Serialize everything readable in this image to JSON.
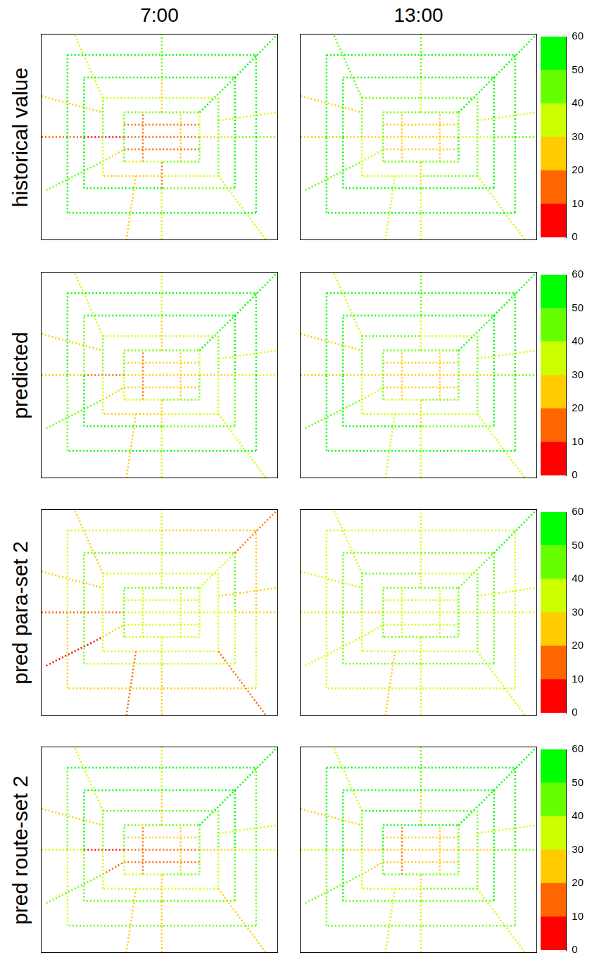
{
  "chart_data": {
    "type": "scatter",
    "columns": [
      "7:00",
      "13:00"
    ],
    "rows": [
      "historical value",
      "predicted",
      "pred para-set 2",
      "pred route-set 2"
    ],
    "line_style": "dotted",
    "tick_labels": false,
    "xlim": [
      0,
      100
    ],
    "ylim": [
      0,
      100
    ],
    "road_segments": [
      [
        35,
        62,
        51,
        62
      ],
      [
        51,
        62,
        67,
        62
      ],
      [
        67,
        62,
        67,
        50
      ],
      [
        67,
        50,
        67,
        38
      ],
      [
        67,
        38,
        51,
        38
      ],
      [
        51,
        38,
        35,
        38
      ],
      [
        35,
        38,
        35,
        50
      ],
      [
        35,
        50,
        35,
        62
      ],
      [
        26,
        69,
        51,
        69
      ],
      [
        51,
        69,
        75,
        69
      ],
      [
        75,
        69,
        75,
        50
      ],
      [
        75,
        50,
        75,
        31
      ],
      [
        75,
        31,
        51,
        31
      ],
      [
        51,
        31,
        26,
        31
      ],
      [
        26,
        31,
        26,
        50
      ],
      [
        26,
        50,
        26,
        69
      ],
      [
        18,
        79,
        51,
        79
      ],
      [
        51,
        79,
        82,
        79
      ],
      [
        82,
        79,
        82,
        50
      ],
      [
        82,
        50,
        82,
        25
      ],
      [
        82,
        25,
        51,
        25
      ],
      [
        51,
        25,
        18,
        25
      ],
      [
        18,
        25,
        18,
        50
      ],
      [
        18,
        50,
        18,
        79
      ],
      [
        11,
        90,
        51,
        90
      ],
      [
        51,
        90,
        91,
        90
      ],
      [
        91,
        90,
        91,
        50
      ],
      [
        91,
        50,
        91,
        13
      ],
      [
        91,
        13,
        51,
        13
      ],
      [
        51,
        13,
        11,
        13
      ],
      [
        11,
        13,
        11,
        50
      ],
      [
        11,
        50,
        11,
        90
      ],
      [
        0,
        50,
        18,
        50
      ],
      [
        18,
        50,
        35,
        50
      ],
      [
        35,
        50,
        67,
        50
      ],
      [
        67,
        50,
        82,
        50
      ],
      [
        82,
        50,
        100,
        50
      ],
      [
        51,
        0,
        51,
        25
      ],
      [
        51,
        25,
        51,
        38
      ],
      [
        51,
        62,
        51,
        79
      ],
      [
        51,
        79,
        51,
        100
      ],
      [
        35,
        44,
        67,
        44
      ],
      [
        35,
        56,
        67,
        56
      ],
      [
        43,
        38,
        43,
        62
      ],
      [
        59,
        38,
        59,
        62
      ],
      [
        67,
        62,
        82,
        79
      ],
      [
        82,
        79,
        100,
        100
      ],
      [
        2,
        24,
        26,
        38
      ],
      [
        26,
        38,
        35,
        44
      ],
      [
        26,
        69,
        14,
        100
      ],
      [
        75,
        31,
        95,
        0
      ],
      [
        40,
        31,
        36,
        0
      ],
      [
        0,
        70,
        26,
        62
      ],
      [
        75,
        58,
        100,
        62
      ]
    ],
    "panels": [
      {
        "row": "historical value",
        "column": "7:00",
        "values": [
          45,
          42,
          38,
          48,
          44,
          35,
          40,
          46,
          38,
          32,
          45,
          40,
          35,
          28,
          33,
          42,
          52,
          55,
          53,
          50,
          48,
          52,
          54,
          51,
          55,
          57,
          54,
          52,
          56,
          53,
          50,
          55,
          12,
          8,
          15,
          25,
          42,
          35,
          18,
          22,
          40,
          14,
          18,
          12,
          22,
          55,
          58,
          45,
          25,
          38,
          32,
          28,
          22,
          35
        ]
      },
      {
        "row": "historical value",
        "column": "13:00",
        "values": [
          48,
          45,
          42,
          50,
          46,
          40,
          44,
          48,
          45,
          40,
          48,
          44,
          40,
          35,
          38,
          46,
          54,
          56,
          55,
          52,
          50,
          54,
          55,
          53,
          56,
          58,
          55,
          54,
          57,
          55,
          52,
          56,
          28,
          22,
          25,
          30,
          45,
          38,
          28,
          30,
          42,
          22,
          25,
          20,
          28,
          56,
          58,
          48,
          32,
          40,
          36,
          32,
          28,
          38
        ]
      },
      {
        "row": "predicted",
        "column": "7:00",
        "values": [
          42,
          40,
          35,
          45,
          40,
          32,
          38,
          44,
          35,
          30,
          40,
          38,
          32,
          28,
          30,
          40,
          50,
          53,
          52,
          48,
          46,
          50,
          52,
          48,
          52,
          55,
          52,
          50,
          54,
          50,
          48,
          52,
          22,
          15,
          24,
          28,
          38,
          32,
          25,
          26,
          36,
          22,
          25,
          18,
          26,
          53,
          56,
          42,
          28,
          35,
          30,
          28,
          26,
          32
        ]
      },
      {
        "row": "predicted",
        "column": "13:00",
        "values": [
          46,
          44,
          40,
          48,
          44,
          38,
          42,
          46,
          42,
          38,
          45,
          42,
          38,
          34,
          36,
          44,
          52,
          55,
          53,
          50,
          48,
          52,
          54,
          50,
          54,
          56,
          53,
          52,
          55,
          53,
          50,
          54,
          28,
          24,
          22,
          28,
          42,
          35,
          28,
          30,
          40,
          24,
          26,
          20,
          28,
          55,
          57,
          45,
          30,
          38,
          34,
          30,
          28,
          36
        ]
      },
      {
        "row": "pred para-set 2",
        "column": "7:00",
        "values": [
          42,
          40,
          36,
          38,
          35,
          38,
          42,
          44,
          36,
          34,
          38,
          35,
          32,
          30,
          35,
          38,
          42,
          45,
          40,
          38,
          36,
          35,
          42,
          44,
          32,
          28,
          25,
          30,
          28,
          26,
          25,
          30,
          18,
          15,
          35,
          32,
          28,
          25,
          32,
          35,
          30,
          35,
          32,
          38,
          36,
          30,
          15,
          8,
          22,
          22,
          18,
          15,
          25,
          28
        ]
      },
      {
        "row": "pred para-set 2",
        "column": "13:00",
        "values": [
          44,
          42,
          40,
          42,
          40,
          40,
          44,
          45,
          40,
          38,
          42,
          40,
          38,
          35,
          38,
          40,
          46,
          48,
          45,
          44,
          42,
          42,
          46,
          48,
          38,
          35,
          32,
          36,
          34,
          32,
          34,
          36,
          30,
          28,
          38,
          35,
          32,
          32,
          35,
          38,
          35,
          36,
          35,
          38,
          38,
          48,
          52,
          32,
          30,
          32,
          30,
          26,
          32,
          34
        ]
      },
      {
        "row": "pred route-set 2",
        "column": "7:00",
        "values": [
          45,
          48,
          42,
          46,
          40,
          38,
          36,
          44,
          48,
          45,
          44,
          38,
          35,
          32,
          30,
          42,
          52,
          55,
          50,
          48,
          46,
          44,
          48,
          52,
          50,
          55,
          48,
          45,
          42,
          40,
          38,
          48,
          30,
          8,
          18,
          26,
          35,
          28,
          22,
          25,
          38,
          15,
          22,
          14,
          24,
          55,
          58,
          42,
          18,
          32,
          28,
          25,
          22,
          35
        ]
      },
      {
        "row": "pred route-set 2",
        "column": "13:00",
        "values": [
          50,
          52,
          46,
          48,
          44,
          42,
          45,
          50,
          50,
          48,
          46,
          42,
          40,
          38,
          36,
          46,
          54,
          56,
          52,
          50,
          48,
          48,
          50,
          54,
          52,
          56,
          50,
          48,
          46,
          44,
          42,
          50,
          32,
          22,
          20,
          28,
          40,
          32,
          26,
          28,
          40,
          22,
          24,
          18,
          26,
          56,
          58,
          45,
          25,
          36,
          32,
          30,
          28,
          38
        ]
      }
    ],
    "colorbar": {
      "range": [
        0,
        60
      ],
      "ticks": [
        0,
        10,
        20,
        30,
        40,
        50,
        60
      ],
      "bins": [
        0,
        10,
        20,
        30,
        40,
        50,
        60
      ],
      "colors": [
        "#ff0000",
        "#ff6600",
        "#ffcc00",
        "#ccff00",
        "#66ff00",
        "#00ff00"
      ]
    }
  }
}
